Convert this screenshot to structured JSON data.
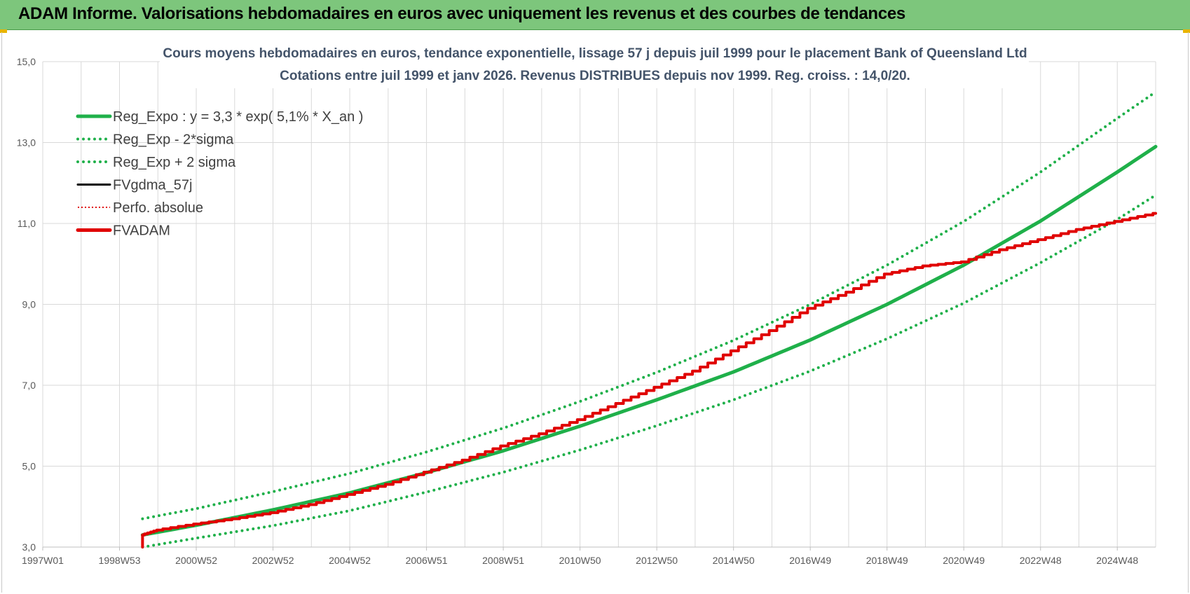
{
  "header": {
    "title": "ADAM Informe. Valorisations hebdomadaires en euros avec uniquement les revenus et des courbes de tendances"
  },
  "colors": {
    "header_bg": "#7dc67c",
    "trend_green": "#1fb04a",
    "black_series": "#000000",
    "red_series": "#e00000",
    "grid": "#d9d9d9"
  },
  "chart_data": {
    "type": "line",
    "title": "Cours moyens hebdomadaires en euros, tendance exponentielle, lissage 57 j depuis juil 1999 pour le placement Bank of Queensland Ltd",
    "subtitle": "Cotations entre juil 1999 et janv 2026. Revenus DISTRIBUES depuis nov 1999. Reg. croiss. : 14,0/20.",
    "xlabel": "",
    "ylabel": "",
    "x_unit": "year",
    "xlim": [
      1997.0,
      2026.0
    ],
    "ylim": [
      3.0,
      15.0
    ],
    "y_ticks": [
      "3,0",
      "5,0",
      "7,0",
      "9,0",
      "11,0",
      "13,0",
      "15,0"
    ],
    "y_tick_values": [
      3,
      5,
      7,
      9,
      11,
      13,
      15
    ],
    "x_ticks": [
      "1997W01",
      "1998W53",
      "2000W52",
      "2002W52",
      "2004W52",
      "2006W51",
      "2008W51",
      "2010W50",
      "2012W50",
      "2014W50",
      "2016W49",
      "2018W49",
      "2020W49",
      "2022W48",
      "2024W48"
    ],
    "x_tick_values": [
      1997.0,
      1999.0,
      2001.0,
      2003.0,
      2005.0,
      2007.0,
      2009.0,
      2011.0,
      2013.0,
      2015.0,
      2017.0,
      2019.0,
      2021.0,
      2023.0,
      2025.0
    ],
    "grid": true,
    "legend_position": "top-left",
    "series": [
      {
        "name": "Reg_Expo : y = 3,3 * exp( 5,1% *  X_an )",
        "style": "solid-thick",
        "color": "#1fb04a",
        "x": [
          1999.6,
          2001,
          2003,
          2005,
          2007,
          2009,
          2011,
          2013,
          2015,
          2017,
          2019,
          2021,
          2023,
          2025,
          2026.0
        ],
        "y": [
          3.3,
          3.54,
          3.92,
          4.34,
          4.84,
          5.38,
          5.99,
          6.64,
          7.33,
          8.12,
          9.0,
          9.97,
          11.06,
          12.27,
          12.9
        ]
      },
      {
        "name": "Reg_Exp - 2*sigma",
        "style": "dotted",
        "color": "#1fb04a",
        "x": [
          1999.6,
          2001,
          2003,
          2005,
          2007,
          2009,
          2011,
          2013,
          2015,
          2017,
          2019,
          2021,
          2023,
          2025,
          2026.0
        ],
        "y": [
          3.0,
          3.22,
          3.53,
          3.9,
          4.36,
          4.85,
          5.4,
          6.0,
          6.64,
          7.35,
          8.15,
          9.03,
          10.03,
          11.1,
          11.7
        ]
      },
      {
        "name": "Reg_Exp + 2 sigma",
        "style": "dotted",
        "color": "#1fb04a",
        "x": [
          1999.6,
          2001,
          2003,
          2005,
          2007,
          2009,
          2011,
          2013,
          2015,
          2017,
          2019,
          2021,
          2023,
          2025,
          2026.0
        ],
        "y": [
          3.7,
          3.95,
          4.37,
          4.82,
          5.35,
          5.94,
          6.6,
          7.32,
          8.11,
          9.0,
          9.97,
          11.05,
          12.27,
          13.6,
          14.25
        ]
      },
      {
        "name": "FVgdma_57j",
        "style": "solid",
        "color": "#000000",
        "x": [
          1999.6,
          1999.6,
          2000,
          2001,
          2002,
          2003,
          2004,
          2005,
          2006,
          2007,
          2008,
          2009,
          2010,
          2011,
          2012,
          2013,
          2014,
          2015,
          2016,
          2017,
          2018,
          2019,
          2020,
          2021,
          2022,
          2023,
          2024,
          2025,
          2026.0
        ],
        "y": [
          3.0,
          3.3,
          3.42,
          3.57,
          3.7,
          3.85,
          4.05,
          4.3,
          4.55,
          4.85,
          5.15,
          5.5,
          5.8,
          6.15,
          6.55,
          6.95,
          7.35,
          7.85,
          8.35,
          8.9,
          9.3,
          9.75,
          9.95,
          10.05,
          10.35,
          10.6,
          10.85,
          11.05,
          11.25
        ]
      },
      {
        "name": "Perfo. absolue",
        "style": "dotted",
        "color": "#e00000",
        "x": [
          1999.6,
          1999.6,
          2000,
          2001,
          2002,
          2003,
          2004,
          2005,
          2006,
          2007,
          2008,
          2009,
          2010,
          2011,
          2012,
          2013,
          2014,
          2015,
          2016,
          2017,
          2018,
          2019,
          2020,
          2021,
          2022,
          2023,
          2024,
          2025,
          2026.0
        ],
        "y": [
          3.0,
          3.3,
          3.42,
          3.57,
          3.7,
          3.85,
          4.05,
          4.3,
          4.55,
          4.85,
          5.15,
          5.5,
          5.8,
          6.15,
          6.55,
          6.95,
          7.35,
          7.85,
          8.35,
          8.9,
          9.3,
          9.75,
          9.95,
          10.05,
          10.35,
          10.6,
          10.85,
          11.05,
          11.25
        ]
      },
      {
        "name": "FVADAM",
        "style": "solid-thick-stepped",
        "color": "#e00000",
        "x": [
          1999.6,
          1999.6,
          2000,
          2001,
          2002,
          2003,
          2004,
          2005,
          2006,
          2007,
          2008,
          2009,
          2010,
          2011,
          2012,
          2013,
          2014,
          2015,
          2016,
          2017,
          2018,
          2019,
          2020,
          2021,
          2022,
          2023,
          2024,
          2025,
          2026.0
        ],
        "y": [
          3.0,
          3.3,
          3.42,
          3.57,
          3.7,
          3.85,
          4.05,
          4.3,
          4.55,
          4.85,
          5.15,
          5.5,
          5.8,
          6.15,
          6.55,
          6.95,
          7.35,
          7.85,
          8.35,
          8.9,
          9.3,
          9.75,
          9.95,
          10.05,
          10.35,
          10.6,
          10.85,
          11.05,
          11.25
        ]
      }
    ]
  }
}
